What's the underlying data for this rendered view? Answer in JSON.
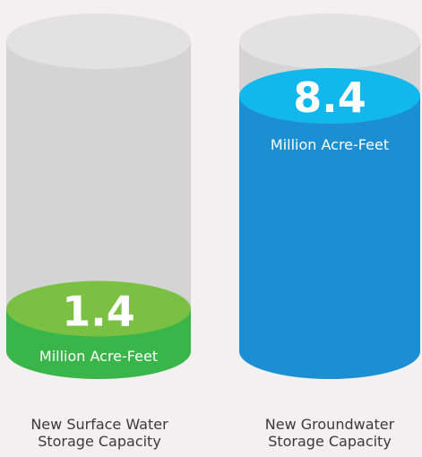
{
  "chart_data": {
    "type": "bar",
    "style": "cylinder",
    "unit": "Million Acre-Feet",
    "categories": [
      [
        "New Surface Water",
        "Storage Capacity"
      ],
      [
        "New Groundwater",
        "Storage Capacity"
      ]
    ],
    "values": [
      1.4,
      8.4
    ],
    "value_labels": [
      "1.4",
      "8.4"
    ],
    "ylim": [
      0,
      10.2
    ],
    "colors": {
      "empty_body": "#d5d4d4",
      "empty_top": "#e3e2e2",
      "bar_0_body": "#39b54a",
      "bar_0_top": "#7ac143",
      "bar_1_body": "#1b8fd2",
      "bar_1_top": "#12b8ec",
      "value_text": "#ffffff",
      "caption_text": "#3a3a3a"
    }
  }
}
